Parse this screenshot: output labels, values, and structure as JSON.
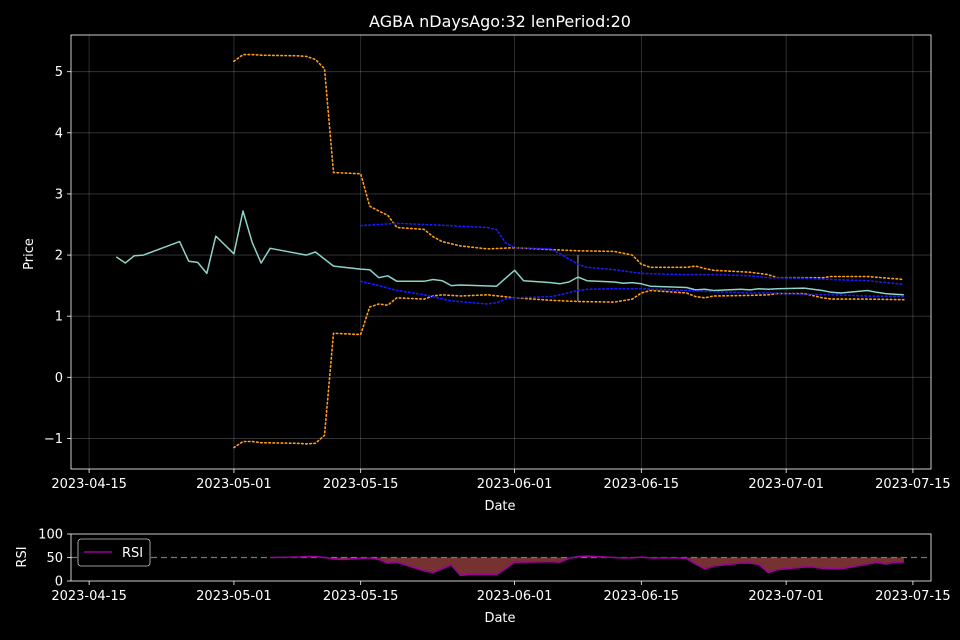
{
  "chart_data": [
    {
      "type": "line",
      "title": "AGBA nDaysAgo:32 lenPeriod:20",
      "xlabel": "Date",
      "ylabel": "Price",
      "xlim": [
        "2023-04-13",
        "2023-07-17"
      ],
      "ylim": [
        -1.5,
        5.6
      ],
      "x_ticks": [
        "2023-04-15",
        "2023-05-01",
        "2023-05-15",
        "2023-06-01",
        "2023-06-15",
        "2023-07-01",
        "2023-07-15"
      ],
      "y_ticks": [
        -1,
        0,
        1,
        2,
        3,
        4,
        5
      ],
      "y_tick_labels": [
        "−1",
        "0",
        "1",
        "2",
        "3",
        "4",
        "5"
      ],
      "grid": true,
      "colors": {
        "price": "#8dd3c7",
        "band_orange": "#ff9e1b",
        "band_blue": "#1a1aff",
        "marker": "#aaaaaa"
      },
      "marker_date": "2023-06-08",
      "series": [
        {
          "key": "price",
          "style": "solid",
          "points": [
            [
              "2023-04-18",
              1.97
            ],
            [
              "2023-04-19",
              1.87
            ],
            [
              "2023-04-20",
              1.99
            ],
            [
              "2023-04-21",
              2.0
            ],
            [
              "2023-04-25",
              2.22
            ],
            [
              "2023-04-26",
              1.9
            ],
            [
              "2023-04-27",
              1.88
            ],
            [
              "2023-04-28",
              1.7
            ],
            [
              "2023-04-29",
              2.31
            ],
            [
              "2023-05-01",
              2.02
            ],
            [
              "2023-05-02",
              2.72
            ],
            [
              "2023-05-03",
              2.21
            ],
            [
              "2023-05-04",
              1.87
            ],
            [
              "2023-05-05",
              2.11
            ],
            [
              "2023-05-09",
              2.0
            ],
            [
              "2023-05-10",
              2.05
            ],
            [
              "2023-05-12",
              1.82
            ],
            [
              "2023-05-15",
              1.77
            ],
            [
              "2023-05-16",
              1.76
            ],
            [
              "2023-05-17",
              1.63
            ],
            [
              "2023-05-18",
              1.66
            ],
            [
              "2023-05-19",
              1.57
            ],
            [
              "2023-05-22",
              1.57
            ],
            [
              "2023-05-23",
              1.6
            ],
            [
              "2023-05-24",
              1.58
            ],
            [
              "2023-05-25",
              1.5
            ],
            [
              "2023-05-26",
              1.51
            ],
            [
              "2023-05-30",
              1.49
            ],
            [
              "2023-06-01",
              1.75
            ],
            [
              "2023-06-02",
              1.58
            ],
            [
              "2023-06-05",
              1.55
            ],
            [
              "2023-06-06",
              1.53
            ],
            [
              "2023-06-07",
              1.56
            ],
            [
              "2023-06-08",
              1.64
            ],
            [
              "2023-06-09",
              1.58
            ],
            [
              "2023-06-12",
              1.56
            ],
            [
              "2023-06-13",
              1.54
            ],
            [
              "2023-06-14",
              1.55
            ],
            [
              "2023-06-15",
              1.53
            ],
            [
              "2023-06-16",
              1.49
            ],
            [
              "2023-06-20",
              1.47
            ],
            [
              "2023-06-21",
              1.43
            ],
            [
              "2023-06-22",
              1.44
            ],
            [
              "2023-06-23",
              1.42
            ],
            [
              "2023-06-26",
              1.44
            ],
            [
              "2023-06-27",
              1.43
            ],
            [
              "2023-06-28",
              1.45
            ],
            [
              "2023-06-29",
              1.44
            ],
            [
              "2023-06-30",
              1.45
            ],
            [
              "2023-07-03",
              1.46
            ],
            [
              "2023-07-05",
              1.42
            ],
            [
              "2023-07-06",
              1.39
            ],
            [
              "2023-07-07",
              1.38
            ],
            [
              "2023-07-10",
              1.42
            ],
            [
              "2023-07-11",
              1.39
            ],
            [
              "2023-07-12",
              1.37
            ],
            [
              "2023-07-13",
              1.36
            ],
            [
              "2023-07-14",
              1.35
            ]
          ]
        },
        {
          "key": "band_orange",
          "style": "dotted",
          "points": [
            [
              "2023-05-01",
              5.17
            ],
            [
              "2023-05-02",
              5.28
            ],
            [
              "2023-05-03",
              5.28
            ],
            [
              "2023-05-04",
              5.27
            ],
            [
              "2023-05-08",
              5.26
            ],
            [
              "2023-05-09",
              5.25
            ],
            [
              "2023-05-10",
              5.2
            ],
            [
              "2023-05-11",
              5.05
            ],
            [
              "2023-05-12",
              3.35
            ],
            [
              "2023-05-15",
              3.33
            ],
            [
              "2023-05-16",
              2.8
            ],
            [
              "2023-05-17",
              2.72
            ],
            [
              "2023-05-18",
              2.65
            ],
            [
              "2023-05-19",
              2.45
            ],
            [
              "2023-05-22",
              2.42
            ],
            [
              "2023-05-23",
              2.3
            ],
            [
              "2023-05-24",
              2.22
            ],
            [
              "2023-05-26",
              2.15
            ],
            [
              "2023-05-29",
              2.1
            ],
            [
              "2023-06-01",
              2.12
            ],
            [
              "2023-06-05",
              2.09
            ],
            [
              "2023-06-08",
              2.07
            ],
            [
              "2023-06-12",
              2.06
            ],
            [
              "2023-06-14",
              2.0
            ],
            [
              "2023-06-15",
              1.85
            ],
            [
              "2023-06-16",
              1.8
            ],
            [
              "2023-06-20",
              1.8
            ],
            [
              "2023-06-21",
              1.82
            ],
            [
              "2023-06-22",
              1.78
            ],
            [
              "2023-06-23",
              1.75
            ],
            [
              "2023-06-27",
              1.72
            ],
            [
              "2023-06-29",
              1.68
            ],
            [
              "2023-06-30",
              1.63
            ],
            [
              "2023-07-03",
              1.63
            ],
            [
              "2023-07-05",
              1.63
            ],
            [
              "2023-07-06",
              1.65
            ],
            [
              "2023-07-10",
              1.65
            ],
            [
              "2023-07-14",
              1.6
            ]
          ]
        },
        {
          "key": "band_orange",
          "style": "dotted",
          "points": [
            [
              "2023-05-01",
              -1.15
            ],
            [
              "2023-05-02",
              -1.05
            ],
            [
              "2023-05-03",
              -1.05
            ],
            [
              "2023-05-04",
              -1.07
            ],
            [
              "2023-05-08",
              -1.08
            ],
            [
              "2023-05-09",
              -1.09
            ],
            [
              "2023-05-10",
              -1.08
            ],
            [
              "2023-05-11",
              -0.95
            ],
            [
              "2023-05-12",
              0.72
            ],
            [
              "2023-05-15",
              0.7
            ],
            [
              "2023-05-16",
              1.15
            ],
            [
              "2023-05-17",
              1.2
            ],
            [
              "2023-05-18",
              1.18
            ],
            [
              "2023-05-19",
              1.3
            ],
            [
              "2023-05-22",
              1.28
            ],
            [
              "2023-05-23",
              1.33
            ],
            [
              "2023-05-24",
              1.35
            ],
            [
              "2023-05-26",
              1.33
            ],
            [
              "2023-05-29",
              1.35
            ],
            [
              "2023-06-01",
              1.3
            ],
            [
              "2023-06-05",
              1.26
            ],
            [
              "2023-06-08",
              1.24
            ],
            [
              "2023-06-12",
              1.23
            ],
            [
              "2023-06-14",
              1.28
            ],
            [
              "2023-06-15",
              1.38
            ],
            [
              "2023-06-16",
              1.42
            ],
            [
              "2023-06-20",
              1.38
            ],
            [
              "2023-06-21",
              1.32
            ],
            [
              "2023-06-22",
              1.3
            ],
            [
              "2023-06-23",
              1.33
            ],
            [
              "2023-06-27",
              1.34
            ],
            [
              "2023-06-29",
              1.35
            ],
            [
              "2023-06-30",
              1.37
            ],
            [
              "2023-07-03",
              1.37
            ],
            [
              "2023-07-05",
              1.3
            ],
            [
              "2023-07-06",
              1.28
            ],
            [
              "2023-07-10",
              1.28
            ],
            [
              "2023-07-14",
              1.27
            ]
          ]
        },
        {
          "key": "band_blue",
          "style": "dotted",
          "points": [
            [
              "2023-05-15",
              2.48
            ],
            [
              "2023-05-17",
              2.5
            ],
            [
              "2023-05-19",
              2.52
            ],
            [
              "2023-05-22",
              2.5
            ],
            [
              "2023-05-25",
              2.48
            ],
            [
              "2023-05-29",
              2.45
            ],
            [
              "2023-05-30",
              2.42
            ],
            [
              "2023-05-31",
              2.2
            ],
            [
              "2023-06-01",
              2.12
            ],
            [
              "2023-06-05",
              2.1
            ],
            [
              "2023-06-06",
              2.02
            ],
            [
              "2023-06-08",
              1.85
            ],
            [
              "2023-06-09",
              1.8
            ],
            [
              "2023-06-12",
              1.76
            ],
            [
              "2023-06-15",
              1.7
            ],
            [
              "2023-06-20",
              1.68
            ],
            [
              "2023-06-23",
              1.68
            ],
            [
              "2023-06-27",
              1.66
            ],
            [
              "2023-06-29",
              1.63
            ],
            [
              "2023-07-03",
              1.62
            ],
            [
              "2023-07-06",
              1.6
            ],
            [
              "2023-07-10",
              1.58
            ],
            [
              "2023-07-14",
              1.52
            ]
          ]
        },
        {
          "key": "band_blue",
          "style": "dotted",
          "points": [
            [
              "2023-05-15",
              1.57
            ],
            [
              "2023-05-17",
              1.5
            ],
            [
              "2023-05-19",
              1.42
            ],
            [
              "2023-05-22",
              1.35
            ],
            [
              "2023-05-25",
              1.25
            ],
            [
              "2023-05-29",
              1.2
            ],
            [
              "2023-05-30",
              1.22
            ],
            [
              "2023-05-31",
              1.28
            ],
            [
              "2023-06-01",
              1.3
            ],
            [
              "2023-06-05",
              1.32
            ],
            [
              "2023-06-06",
              1.35
            ],
            [
              "2023-06-08",
              1.42
            ],
            [
              "2023-06-09",
              1.44
            ],
            [
              "2023-06-12",
              1.45
            ],
            [
              "2023-06-15",
              1.45
            ],
            [
              "2023-06-20",
              1.42
            ],
            [
              "2023-06-23",
              1.4
            ],
            [
              "2023-06-27",
              1.38
            ],
            [
              "2023-06-29",
              1.38
            ],
            [
              "2023-07-03",
              1.36
            ],
            [
              "2023-07-06",
              1.35
            ],
            [
              "2023-07-10",
              1.33
            ],
            [
              "2023-07-14",
              1.32
            ]
          ]
        }
      ]
    },
    {
      "type": "area",
      "xlabel": "Date",
      "ylabel": "RSI",
      "xlim": [
        "2023-04-13",
        "2023-07-17"
      ],
      "ylim": [
        0,
        100
      ],
      "x_ticks": [
        "2023-04-15",
        "2023-05-01",
        "2023-05-15",
        "2023-06-01",
        "2023-06-15",
        "2023-07-01",
        "2023-07-15"
      ],
      "y_ticks": [
        0,
        50,
        100
      ],
      "y_tick_labels": [
        "0",
        "50",
        "100"
      ],
      "reference_line": 50,
      "legend": {
        "label": "RSI",
        "position": "upper-left"
      },
      "colors": {
        "line": "#9a009a",
        "fill": "#8b3a3a",
        "reference": "#777777"
      },
      "series": [
        {
          "name": "RSI",
          "points": [
            [
              "2023-05-05",
              50
            ],
            [
              "2023-05-08",
              51
            ],
            [
              "2023-05-09",
              52
            ],
            [
              "2023-05-10",
              52
            ],
            [
              "2023-05-11",
              50
            ],
            [
              "2023-05-12",
              47
            ],
            [
              "2023-05-13",
              46
            ],
            [
              "2023-05-15",
              48
            ],
            [
              "2023-05-16",
              49
            ],
            [
              "2023-05-17",
              46
            ],
            [
              "2023-05-18",
              38
            ],
            [
              "2023-05-19",
              40
            ],
            [
              "2023-05-22",
              22
            ],
            [
              "2023-05-23",
              18
            ],
            [
              "2023-05-24",
              26
            ],
            [
              "2023-05-25",
              34
            ],
            [
              "2023-05-26",
              12
            ],
            [
              "2023-05-27",
              14
            ],
            [
              "2023-05-30",
              14
            ],
            [
              "2023-05-31",
              26
            ],
            [
              "2023-06-01",
              40
            ],
            [
              "2023-06-02",
              40
            ],
            [
              "2023-06-05",
              41
            ],
            [
              "2023-06-06",
              40
            ],
            [
              "2023-06-07",
              48
            ],
            [
              "2023-06-08",
              52
            ],
            [
              "2023-06-09",
              53
            ],
            [
              "2023-06-12",
              50
            ],
            [
              "2023-06-13",
              49
            ],
            [
              "2023-06-14",
              49
            ],
            [
              "2023-06-15",
              51
            ],
            [
              "2023-06-16",
              49
            ],
            [
              "2023-06-19",
              49
            ],
            [
              "2023-06-20",
              48
            ],
            [
              "2023-06-21",
              36
            ],
            [
              "2023-06-22",
              26
            ],
            [
              "2023-06-23",
              32
            ],
            [
              "2023-06-26",
              38
            ],
            [
              "2023-06-27",
              38
            ],
            [
              "2023-06-28",
              35
            ],
            [
              "2023-06-29",
              18
            ],
            [
              "2023-06-30",
              24
            ],
            [
              "2023-07-03",
              30
            ],
            [
              "2023-07-04",
              30
            ],
            [
              "2023-07-05",
              27
            ],
            [
              "2023-07-06",
              26
            ],
            [
              "2023-07-07",
              26
            ],
            [
              "2023-07-10",
              36
            ],
            [
              "2023-07-11",
              40
            ],
            [
              "2023-07-12",
              36
            ],
            [
              "2023-07-13",
              40
            ],
            [
              "2023-07-14",
              40
            ]
          ]
        }
      ]
    }
  ]
}
